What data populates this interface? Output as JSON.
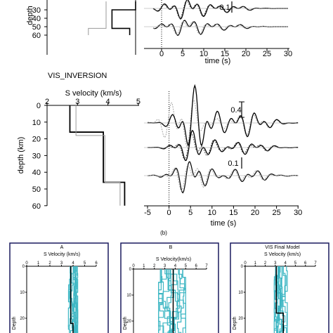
{
  "chart_data": [
    {
      "type": "line",
      "panel": "top-velocity-profile-partial",
      "ylabel": "depth",
      "ytick_labels": [
        "30",
        "40",
        "50",
        "60"
      ],
      "series": [
        {
          "style": "thick-black",
          "points": [
            [
              5,
              20
            ],
            [
              5,
              30
            ],
            [
              4.2,
              30
            ],
            [
              4.2,
              52
            ],
            [
              4.8,
              52
            ],
            [
              4.8,
              60
            ]
          ]
        },
        {
          "style": "thin-gray",
          "points": [
            [
              4.0,
              20
            ],
            [
              4.0,
              52
            ],
            [
              3.4,
              52
            ],
            [
              3.4,
              60
            ]
          ]
        }
      ]
    },
    {
      "type": "line",
      "panel": "top-waveforms-partial",
      "xlabel": "time (s)",
      "xtick_labels": [
        "0",
        "5",
        "10",
        "15",
        "20",
        "25",
        "30"
      ],
      "x": [
        0,
        30
      ],
      "scale_label": "0.1"
    },
    {
      "type": "line",
      "panel": "vis-inversion-velocity-profile",
      "title": "VIS_INVERSION",
      "xlabel": "S velocity (km/s)",
      "ylabel": "depth (km)",
      "xtick_labels": [
        "2",
        "3",
        "4",
        "5"
      ],
      "ytick_labels": [
        "0",
        "10",
        "20",
        "30",
        "40",
        "50",
        "60"
      ],
      "xlim": [
        2,
        5
      ],
      "ylim": [
        0,
        60
      ],
      "series": [
        {
          "style": "thick-black",
          "points": [
            [
              2.75,
              0
            ],
            [
              2.75,
              16
            ],
            [
              3.85,
              16
            ],
            [
              3.85,
              46
            ],
            [
              4.55,
              46
            ],
            [
              4.55,
              60
            ]
          ]
        },
        {
          "style": "thin-gray",
          "points": [
            [
              2.95,
              0
            ],
            [
              2.95,
              18
            ],
            [
              3.9,
              18
            ],
            [
              3.9,
              46
            ],
            [
              4.4,
              46
            ],
            [
              4.4,
              60
            ]
          ]
        }
      ]
    },
    {
      "type": "line",
      "panel": "vis-inversion-waveforms",
      "xlabel": "time (s)",
      "xtick_labels": [
        "-5",
        "0",
        "5",
        "10",
        "15",
        "20",
        "25",
        "30"
      ],
      "xlim": [
        -5,
        30
      ],
      "scale_labels": [
        "0.4",
        "0.1"
      ]
    },
    {
      "type": "line",
      "panel": "A",
      "title": "A",
      "xlabel": "S Velocity (km/s)",
      "xtick_labels": [
        "0",
        "1",
        "2",
        "3",
        "4",
        "5",
        "6"
      ],
      "ytick_labels": [
        "0",
        "10",
        "20"
      ],
      "xlim": [
        0,
        6
      ],
      "ylim": [
        0,
        30
      ],
      "series": [
        {
          "style": "teal-ensemble",
          "values_range_x": [
            3.6,
            4.4
          ]
        },
        {
          "style": "thick-black",
          "points": [
            [
              3.8,
              0
            ],
            [
              3.8,
              22
            ],
            [
              4.0,
              22
            ],
            [
              4.0,
              30
            ]
          ]
        }
      ]
    },
    {
      "type": "line",
      "panel": "B",
      "title": "B",
      "xlabel": "S Velocity(km/s)",
      "xtick_labels": [
        "0",
        "1",
        "2",
        "3",
        "4",
        "5",
        "6",
        "7"
      ],
      "ytick_labels": [
        "0",
        "10",
        "20"
      ],
      "xlim": [
        0,
        7
      ],
      "ylim": [
        0,
        30
      ],
      "series": [
        {
          "style": "teal-ensemble",
          "values_range_x": [
            2.4,
            5.0
          ]
        },
        {
          "style": "thick-black",
          "points": [
            [
              3.8,
              0
            ],
            [
              3.8,
              25
            ],
            [
              4.3,
              25
            ],
            [
              4.3,
              30
            ]
          ]
        }
      ]
    },
    {
      "type": "line",
      "panel": "vis-final-model",
      "title": "VIS Final Model",
      "xlabel": "S Velocity (km/s)",
      "xtick_labels": [
        "0",
        "1",
        "2",
        "3",
        "4",
        "5",
        "6",
        "7"
      ],
      "ytick_labels": [
        "0",
        "10",
        "20"
      ],
      "xlim": [
        0,
        7
      ],
      "ylim": [
        0,
        30
      ],
      "series": [
        {
          "style": "teal-ensemble",
          "values_range_x": [
            2.9,
            4.2
          ]
        },
        {
          "style": "thick-black",
          "points": [
            [
              3.1,
              0
            ],
            [
              3.1,
              18
            ],
            [
              3.8,
              18
            ],
            [
              3.8,
              30
            ]
          ]
        }
      ]
    }
  ],
  "labels": {
    "top_ylabel": "depth",
    "top_xlabel": "time (s)",
    "vis_title": "VIS_INVERSION",
    "vis_vel_label": "S velocity (km/s)",
    "vis_depth_label": "depth (km)",
    "vis_time_label": "time (s)",
    "scale_04": "0.4",
    "scale_01": "0.1",
    "top_scale_01": "0.1",
    "caption_b": "(b)",
    "A_title": "A",
    "A_xlabel": "S Velocity (km/s)",
    "B_title": "B",
    "B_xlabel": "S Velocity(km/s)",
    "C_title": "VIS Final Model",
    "C_xlabel": "S Velocity (km/s)",
    "bottom_ylabel": "Depth"
  },
  "colors": {
    "ensemble": "#3fb7c4",
    "frame": "#1a1a5e",
    "gray": "#9a9a9a"
  }
}
